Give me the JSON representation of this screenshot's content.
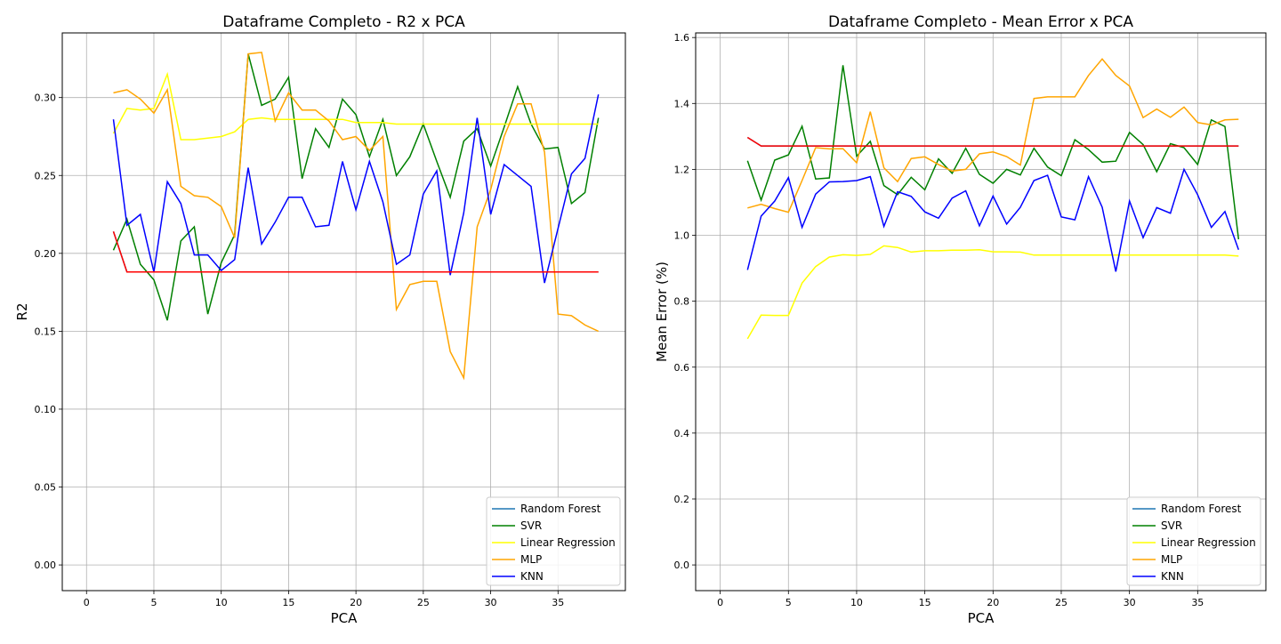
{
  "chart_data": [
    {
      "type": "line",
      "title": "Dataframe Completo - R2 x PCA",
      "xlabel": "PCA",
      "ylabel": "R2",
      "xlim": [
        -1.8,
        40.0
      ],
      "ylim": [
        -0.0165,
        0.3415
      ],
      "xticks": [
        0,
        5,
        10,
        15,
        20,
        25,
        30,
        35
      ],
      "xtick_labels": [
        "0",
        "5",
        "10",
        "15",
        "20",
        "25",
        "30",
        "35"
      ],
      "yticks": [
        0.0,
        0.05,
        0.1,
        0.15,
        0.2,
        0.25,
        0.3
      ],
      "ytick_labels": [
        "0.00",
        "0.05",
        "0.10",
        "0.15",
        "0.20",
        "0.25",
        "0.30"
      ],
      "grid": true,
      "legend_position": "bottom-right",
      "x": [
        2,
        3,
        4,
        5,
        6,
        7,
        8,
        9,
        10,
        11,
        12,
        13,
        14,
        15,
        16,
        17,
        18,
        19,
        20,
        21,
        22,
        23,
        24,
        25,
        26,
        27,
        28,
        29,
        30,
        31,
        32,
        33,
        34,
        35,
        36,
        37,
        38
      ],
      "series": [
        {
          "name": "Random Forest",
          "color": "#1f77b4",
          "values": [
            0.214,
            0.188,
            0.188,
            0.188,
            0.188,
            0.188,
            0.188,
            0.188,
            0.188,
            0.188,
            0.188,
            0.188,
            0.188,
            0.188,
            0.188,
            0.188,
            0.188,
            0.188,
            0.188,
            0.188,
            0.188,
            0.188,
            0.188,
            0.188,
            0.188,
            0.188,
            0.188,
            0.188,
            0.188,
            0.188,
            0.188,
            0.188,
            0.188,
            0.188,
            0.188,
            0.188,
            0.188
          ]
        },
        {
          "name": "SVR",
          "color": "#008000",
          "values": [
            0.202,
            0.222,
            0.193,
            0.183,
            0.157,
            0.208,
            0.217,
            0.161,
            0.194,
            0.212,
            0.328,
            0.295,
            0.299,
            0.313,
            0.248,
            0.28,
            0.268,
            0.299,
            0.289,
            0.262,
            0.286,
            0.25,
            0.262,
            0.283,
            0.259,
            0.236,
            0.272,
            0.28,
            0.256,
            0.281,
            0.307,
            0.283,
            0.267,
            0.268,
            0.232,
            0.239,
            0.287
          ]
        },
        {
          "name": "Linear Regression",
          "color": "#ffff00",
          "values": [
            0.277,
            0.293,
            0.292,
            0.293,
            0.315,
            0.273,
            0.273,
            0.274,
            0.275,
            0.278,
            0.286,
            0.287,
            0.286,
            0.286,
            0.286,
            0.286,
            0.286,
            0.286,
            0.284,
            0.284,
            0.284,
            0.283,
            0.283,
            0.283,
            0.283,
            0.283,
            0.283,
            0.283,
            0.283,
            0.283,
            0.283,
            0.283,
            0.283,
            0.283,
            0.283,
            0.283,
            0.283
          ]
        },
        {
          "name": "MLP",
          "color": "#ffa500",
          "values": [
            0.303,
            0.305,
            0.299,
            0.29,
            0.305,
            0.243,
            0.237,
            0.236,
            0.23,
            0.21,
            0.328,
            0.329,
            0.285,
            0.303,
            0.292,
            0.292,
            0.285,
            0.273,
            0.275,
            0.266,
            0.275,
            0.164,
            0.18,
            0.182,
            0.182,
            0.137,
            0.12,
            0.217,
            0.241,
            0.275,
            0.296,
            0.296,
            0.265,
            0.161,
            0.16,
            0.154,
            0.15
          ]
        },
        {
          "name": "KNN",
          "color": "#0000ff",
          "values": [
            0.286,
            0.218,
            0.225,
            0.188,
            0.246,
            0.232,
            0.199,
            0.199,
            0.189,
            0.196,
            0.255,
            0.206,
            0.22,
            0.236,
            0.236,
            0.217,
            0.218,
            0.259,
            0.228,
            0.259,
            0.233,
            0.193,
            0.199,
            0.238,
            0.253,
            0.186,
            0.226,
            0.287,
            0.225,
            0.257,
            0.25,
            0.243,
            0.181,
            0.216,
            0.251,
            0.261,
            0.302
          ]
        }
      ],
      "overlay_line": {
        "color": "#ff0000",
        "values": [
          0.214,
          0.188,
          0.188,
          0.188,
          0.188,
          0.188,
          0.188,
          0.188,
          0.188,
          0.188,
          0.188,
          0.188,
          0.188,
          0.188,
          0.188,
          0.188,
          0.188,
          0.188,
          0.188,
          0.188,
          0.188,
          0.188,
          0.188,
          0.188,
          0.188,
          0.188,
          0.188,
          0.188,
          0.188,
          0.188,
          0.188,
          0.188,
          0.188,
          0.188,
          0.188,
          0.188,
          0.188
        ]
      }
    },
    {
      "type": "line",
      "title": "Dataframe Completo - Mean Error x PCA",
      "xlabel": "PCA",
      "ylabel": "Mean Error (%)",
      "xlim": [
        -1.8,
        40.0
      ],
      "ylim": [
        -0.078,
        1.614
      ],
      "xticks": [
        0,
        5,
        10,
        15,
        20,
        25,
        30,
        35
      ],
      "xtick_labels": [
        "0",
        "5",
        "10",
        "15",
        "20",
        "25",
        "30",
        "35"
      ],
      "yticks": [
        0.0,
        0.2,
        0.4,
        0.6,
        0.8,
        1.0,
        1.2,
        1.4,
        1.6
      ],
      "ytick_labels": [
        "0.0",
        "0.2",
        "0.4",
        "0.6",
        "0.8",
        "1.0",
        "1.2",
        "1.4",
        "1.6"
      ],
      "grid": true,
      "legend_position": "bottom-right",
      "x": [
        2,
        3,
        4,
        5,
        6,
        7,
        8,
        9,
        10,
        11,
        12,
        13,
        14,
        15,
        16,
        17,
        18,
        19,
        20,
        21,
        22,
        23,
        24,
        25,
        26,
        27,
        28,
        29,
        30,
        31,
        32,
        33,
        34,
        35,
        36,
        37,
        38
      ],
      "series": [
        {
          "name": "Random Forest",
          "color": "#1f77b4",
          "values": [
            1.297,
            1.271,
            1.271,
            1.271,
            1.271,
            1.271,
            1.271,
            1.271,
            1.271,
            1.271,
            1.271,
            1.271,
            1.271,
            1.271,
            1.271,
            1.271,
            1.271,
            1.271,
            1.271,
            1.271,
            1.271,
            1.271,
            1.271,
            1.271,
            1.271,
            1.271,
            1.271,
            1.271,
            1.271,
            1.271,
            1.271,
            1.271,
            1.271,
            1.271,
            1.271,
            1.271,
            1.271
          ]
        },
        {
          "name": "SVR",
          "color": "#008000",
          "values": [
            1.226,
            1.107,
            1.228,
            1.244,
            1.331,
            1.171,
            1.174,
            1.516,
            1.24,
            1.285,
            1.151,
            1.123,
            1.176,
            1.138,
            1.232,
            1.188,
            1.264,
            1.185,
            1.158,
            1.2,
            1.183,
            1.264,
            1.207,
            1.181,
            1.29,
            1.26,
            1.222,
            1.225,
            1.312,
            1.275,
            1.193,
            1.278,
            1.266,
            1.215,
            1.35,
            1.33,
            0.988
          ]
        },
        {
          "name": "Linear Regression",
          "color": "#ffff00",
          "values": [
            0.686,
            0.758,
            0.757,
            0.757,
            0.855,
            0.905,
            0.934,
            0.941,
            0.939,
            0.942,
            0.968,
            0.963,
            0.949,
            0.953,
            0.953,
            0.955,
            0.955,
            0.956,
            0.95,
            0.95,
            0.949,
            0.94,
            0.94,
            0.94,
            0.94,
            0.94,
            0.94,
            0.94,
            0.94,
            0.94,
            0.94,
            0.94,
            0.94,
            0.94,
            0.94,
            0.94,
            0.937
          ]
        },
        {
          "name": "MLP",
          "color": "#ffa500",
          "values": [
            1.083,
            1.094,
            1.081,
            1.07,
            1.166,
            1.266,
            1.262,
            1.263,
            1.22,
            1.375,
            1.205,
            1.163,
            1.233,
            1.238,
            1.215,
            1.195,
            1.2,
            1.247,
            1.253,
            1.239,
            1.213,
            1.415,
            1.42,
            1.42,
            1.42,
            1.485,
            1.535,
            1.485,
            1.453,
            1.357,
            1.383,
            1.358,
            1.389,
            1.342,
            1.335,
            1.35,
            1.352
          ]
        },
        {
          "name": "KNN",
          "color": "#0000ff",
          "values": [
            0.895,
            1.058,
            1.104,
            1.175,
            1.024,
            1.125,
            1.162,
            1.163,
            1.166,
            1.178,
            1.027,
            1.132,
            1.118,
            1.071,
            1.052,
            1.113,
            1.135,
            1.029,
            1.119,
            1.034,
            1.085,
            1.166,
            1.182,
            1.056,
            1.047,
            1.178,
            1.085,
            0.89,
            1.104,
            0.993,
            1.084,
            1.067,
            1.2,
            1.123,
            1.024,
            1.072,
            0.956
          ]
        }
      ],
      "overlay_line": {
        "color": "#ff0000",
        "values": [
          1.297,
          1.271,
          1.271,
          1.271,
          1.271,
          1.271,
          1.271,
          1.271,
          1.271,
          1.271,
          1.271,
          1.271,
          1.271,
          1.271,
          1.271,
          1.271,
          1.271,
          1.271,
          1.271,
          1.271,
          1.271,
          1.271,
          1.271,
          1.271,
          1.271,
          1.271,
          1.271,
          1.271,
          1.271,
          1.271,
          1.271,
          1.271,
          1.271,
          1.271,
          1.271,
          1.271,
          1.271
        ]
      }
    }
  ]
}
